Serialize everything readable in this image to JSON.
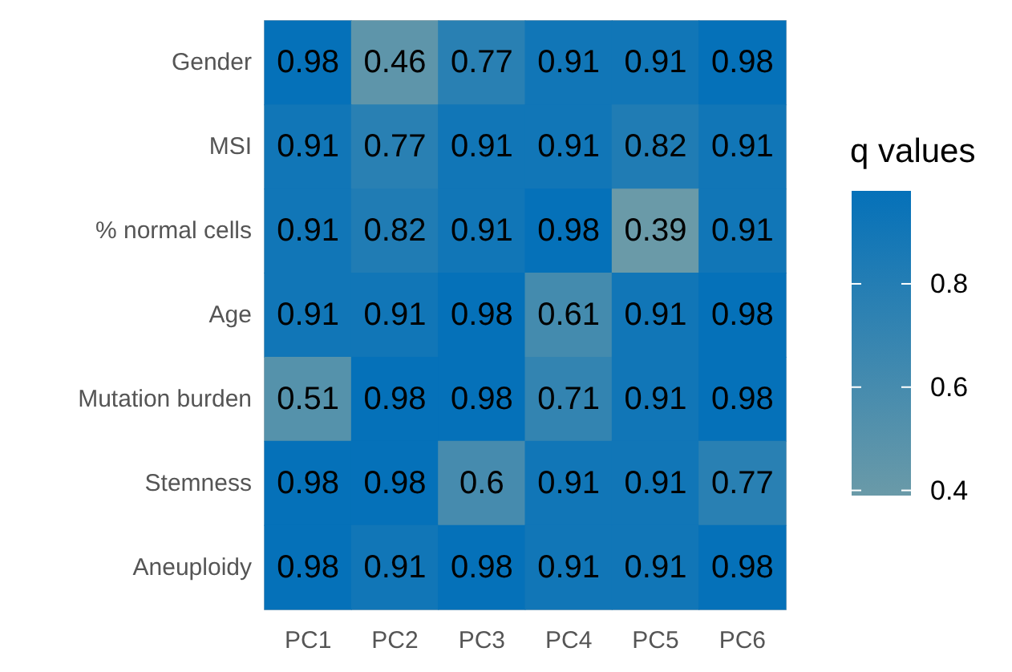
{
  "chart_data": {
    "type": "heatmap",
    "legend_title": "q values",
    "categories": [
      "PC1",
      "PC2",
      "PC3",
      "PC4",
      "PC5",
      "PC6"
    ],
    "y_categories": [
      "Gender",
      "MSI",
      "% normal cells",
      "Age",
      "Mutation burden",
      "Stemness",
      "Aneuploidy"
    ],
    "cells": [
      [
        0.98,
        0.46,
        0.77,
        0.91,
        0.91,
        0.98
      ],
      [
        0.91,
        0.77,
        0.91,
        0.91,
        0.82,
        0.91
      ],
      [
        0.91,
        0.82,
        0.91,
        0.98,
        0.39,
        0.91
      ],
      [
        0.91,
        0.91,
        0.98,
        0.61,
        0.91,
        0.98
      ],
      [
        0.51,
        0.98,
        0.98,
        0.71,
        0.91,
        0.98
      ],
      [
        0.98,
        0.98,
        0.6,
        0.91,
        0.91,
        0.77
      ],
      [
        0.98,
        0.91,
        0.98,
        0.91,
        0.91,
        0.98
      ]
    ],
    "data_labels": true,
    "clim": [
      0.39,
      0.98
    ],
    "cticks": [
      0.4,
      0.6,
      0.8
    ],
    "colors": [
      "#6a9aa8",
      "#0571b9"
    ]
  }
}
